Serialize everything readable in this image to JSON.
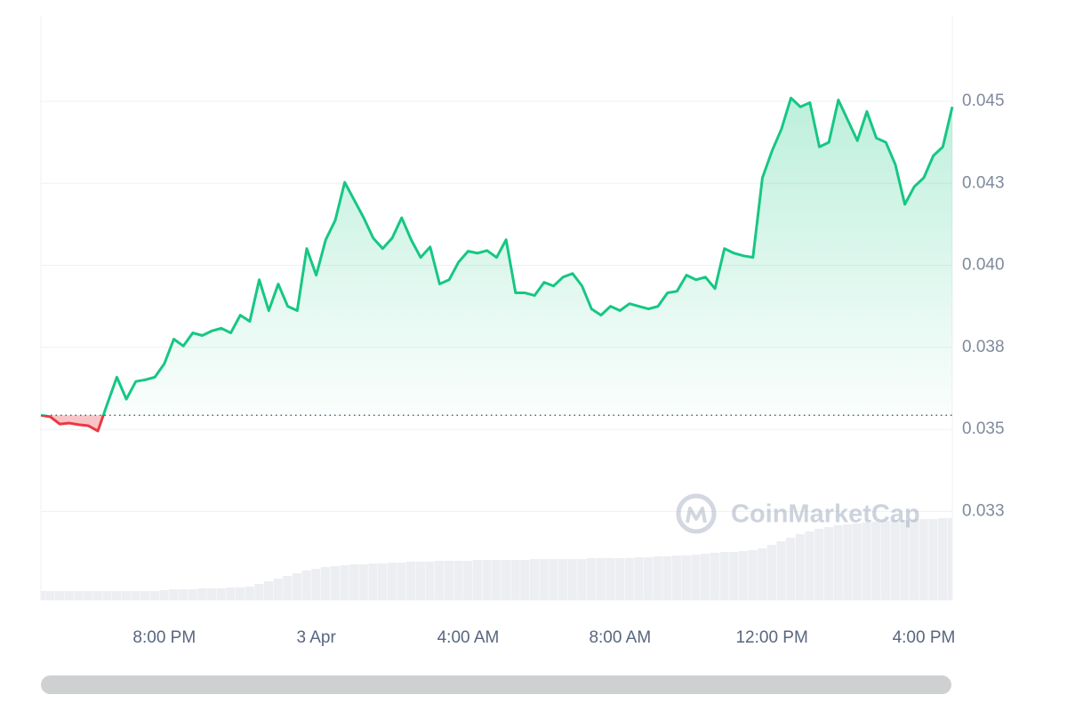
{
  "chart_data": {
    "type": "line",
    "watermark": "CoinMarketCap",
    "categories": [
      null,
      null,
      null,
      null,
      null,
      null,
      null,
      null,
      null,
      null,
      null,
      null,
      null,
      "8:00 PM",
      null,
      null,
      null,
      null,
      null,
      null,
      null,
      null,
      null,
      null,
      null,
      null,
      null,
      null,
      null,
      "3 Apr",
      null,
      null,
      null,
      null,
      null,
      null,
      null,
      null,
      null,
      null,
      null,
      null,
      null,
      null,
      null,
      "4:00 AM",
      null,
      null,
      null,
      null,
      null,
      null,
      null,
      null,
      null,
      null,
      null,
      null,
      null,
      null,
      null,
      "8:00 AM",
      null,
      null,
      null,
      null,
      null,
      null,
      null,
      null,
      null,
      null,
      null,
      null,
      null,
      null,
      null,
      "12:00 PM",
      null,
      null,
      null,
      null,
      null,
      null,
      null,
      null,
      null,
      null,
      null,
      null,
      null,
      null,
      null,
      "4:00 PM",
      null,
      null,
      null
    ],
    "values": [
      0.03543,
      0.03538,
      0.03516,
      0.03519,
      0.03514,
      0.03511,
      0.03495,
      0.03578,
      0.03659,
      0.03592,
      0.03646,
      0.03651,
      0.03659,
      0.037,
      0.03775,
      0.03754,
      0.03794,
      0.03786,
      0.038,
      0.03808,
      0.03794,
      0.03848,
      0.03829,
      0.03956,
      0.03862,
      0.03943,
      0.03875,
      0.03862,
      0.04051,
      0.0397,
      0.04078,
      0.04137,
      0.04253,
      0.04199,
      0.04145,
      0.04083,
      0.04051,
      0.04083,
      0.04145,
      0.04078,
      0.04024,
      0.04056,
      0.03943,
      0.03956,
      0.0401,
      0.04043,
      0.04037,
      0.04045,
      0.04024,
      0.04078,
      0.03916,
      0.03916,
      0.03908,
      0.03948,
      0.03937,
      0.03964,
      0.03975,
      0.03937,
      0.03867,
      0.03848,
      0.03875,
      0.03862,
      0.03883,
      0.03875,
      0.03867,
      0.03875,
      0.03916,
      0.03921,
      0.0397,
      0.03956,
      0.03964,
      0.03929,
      0.04051,
      0.04037,
      0.04029,
      0.04024,
      0.04267,
      0.04348,
      0.04415,
      0.0451,
      0.04483,
      0.04496,
      0.04361,
      0.04375,
      0.04504,
      0.04442,
      0.0438,
      0.04469,
      0.04388,
      0.04375,
      0.04307,
      0.04186,
      0.0424,
      0.04267,
      0.04334,
      0.04361,
      0.04483
    ],
    "volume": [
      10,
      10,
      10,
      10,
      10,
      10,
      10,
      10,
      10,
      10,
      10,
      10,
      10,
      11,
      12,
      12,
      12,
      13,
      13,
      13,
      14,
      14,
      15,
      18,
      21,
      24,
      27,
      30,
      33,
      35,
      37,
      38,
      39,
      40,
      40,
      41,
      41,
      42,
      42,
      43,
      43,
      43,
      44,
      44,
      44,
      44,
      45,
      45,
      45,
      45,
      45,
      45,
      46,
      46,
      46,
      46,
      46,
      46,
      47,
      47,
      47,
      47,
      47,
      48,
      48,
      49,
      49,
      50,
      50,
      51,
      52,
      53,
      54,
      54,
      55,
      56,
      58,
      62,
      66,
      70,
      74,
      77,
      80,
      82,
      84,
      85,
      86,
      87,
      88,
      89,
      90,
      90,
      91,
      91,
      91,
      92,
      92
    ],
    "up_color": "#16c784",
    "down_color": "#ea3943",
    "volume_color": "#eceef2",
    "ylim": [
      0.0298,
      0.0476
    ],
    "yticks": [
      0.045,
      {
        "value": 0.0425,
        "label": "0.043"
      },
      {
        "value": 0.04,
        "label": "0.040"
      },
      {
        "value": 0.0375,
        "label": "0.038"
      },
      0.035,
      {
        "value": 0.0325,
        "label": "0.033"
      }
    ],
    "grid": true
  }
}
